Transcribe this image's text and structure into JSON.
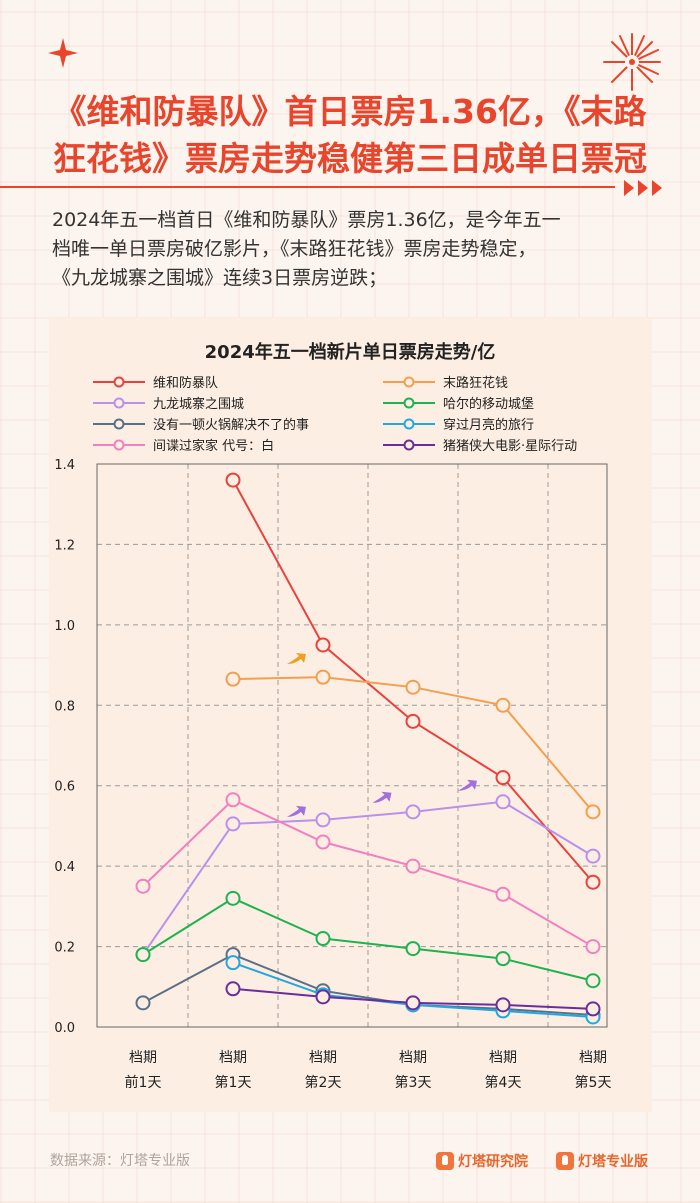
{
  "header": {
    "title_line1": "《维和防暴队》首日票房1.36亿，《末路",
    "title_line2": "狂花钱》票房走势稳健第三日成单日票冠"
  },
  "intro": {
    "line1": "2024年五一档首日《维和防暴队》票房1.36亿，是今年五一",
    "line2": "档唯一单日票房破亿影片，《末路狂花钱》票房走势稳定，",
    "line3": "《九龙城寨之围城》连续3日票房逆跌；"
  },
  "footer": {
    "source": "数据来源：灯塔专业版",
    "brand1": "灯塔研究院",
    "brand2": "灯塔专业版"
  },
  "colors": {
    "accent": "#e8452c"
  },
  "chart_data": {
    "type": "line",
    "title": "2024年五一档新片单日票房走势/亿",
    "categories": [
      [
        "档期",
        "前1天"
      ],
      [
        "档期",
        "第1天"
      ],
      [
        "档期",
        "第2天"
      ],
      [
        "档期",
        "第3天"
      ],
      [
        "档期",
        "第4天"
      ],
      [
        "档期",
        "第5天"
      ]
    ],
    "ylim": [
      0,
      1.4
    ],
    "yticks": [
      "0.0",
      "0.2",
      "0.4",
      "0.6",
      "0.8",
      "1.0",
      "1.2",
      "1.4"
    ],
    "grid": true,
    "legend_position": "top",
    "series": [
      {
        "name": "维和防暴队",
        "color": "#e8423e",
        "values": [
          null,
          1.36,
          0.95,
          0.76,
          0.62,
          0.36
        ]
      },
      {
        "name": "末路狂花钱",
        "color": "#f0a050",
        "values": [
          null,
          0.865,
          0.87,
          0.845,
          0.8,
          0.535
        ]
      },
      {
        "name": "九龙城寨之围城",
        "color": "#b891ea",
        "values": [
          0.18,
          0.505,
          0.515,
          0.535,
          0.56,
          0.425
        ]
      },
      {
        "name": "哈尔的移动城堡",
        "color": "#1db34f",
        "values": [
          0.18,
          0.32,
          0.22,
          0.195,
          0.17,
          0.115
        ]
      },
      {
        "name": "没有一顿火锅解决不了的事",
        "color": "#5a7088",
        "values": [
          0.06,
          0.18,
          0.09,
          0.055,
          0.045,
          0.03
        ]
      },
      {
        "name": "穿过月亮的旅行",
        "color": "#22a8e0",
        "values": [
          null,
          0.16,
          0.08,
          0.055,
          0.04,
          0.025
        ]
      },
      {
        "name": "间谍过家家 代号：白",
        "color": "#f080c0",
        "values": [
          0.35,
          0.565,
          0.46,
          0.4,
          0.33,
          0.2
        ]
      },
      {
        "name": "猪猪侠大电影·星际行动",
        "color": "#6a2d9a",
        "values": [
          null,
          0.095,
          0.075,
          0.06,
          0.055,
          0.045
        ]
      }
    ],
    "annotations": [
      {
        "type": "arrow",
        "color": "#f0a020",
        "x": 1.7,
        "y": 0.915
      },
      {
        "type": "arrow",
        "color": "#a070e0",
        "x": 1.7,
        "y": 0.535
      },
      {
        "type": "arrow",
        "color": "#a070e0",
        "x": 2.65,
        "y": 0.57
      },
      {
        "type": "arrow",
        "color": "#a070e0",
        "x": 3.6,
        "y": 0.6
      }
    ]
  }
}
